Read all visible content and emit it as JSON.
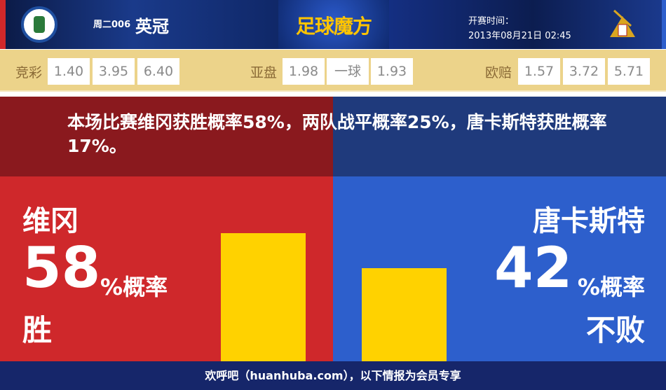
{
  "header": {
    "match_no": "周二006",
    "league": "英冠",
    "brand": "足球魔方",
    "kickoff_label": "开赛时间：",
    "kickoff_time": "2013年08月21日 02:45",
    "home_logo": "WIGAN ATHLETIC",
    "colors": {
      "navy": "#0e2563",
      "red": "#d0282a",
      "blue": "#2d5fcc"
    }
  },
  "odds": {
    "jingcai": {
      "label": "竞彩",
      "values": [
        "1.40",
        "3.95",
        "6.40"
      ]
    },
    "yapan": {
      "label": "亚盘",
      "values": [
        "1.98",
        "一球",
        "1.93"
      ]
    },
    "oupei": {
      "label": "欧赔",
      "values": [
        "1.57",
        "3.72",
        "5.71"
      ]
    }
  },
  "summary": "本场比赛维冈获胜概率58%，两队战平概率25%，唐卡斯特获胜概率17%。",
  "home": {
    "name": "维冈",
    "percent": "58",
    "suffix": "%概率",
    "outcome": "胜",
    "value": 58
  },
  "away": {
    "name": "唐卡斯特",
    "percent": "42",
    "suffix": "%概率",
    "outcome": "不败",
    "value": 42
  },
  "bar_color": "#ffd200",
  "footer": "欢呼吧（huanhuba.com），以下情报为会员专享"
}
